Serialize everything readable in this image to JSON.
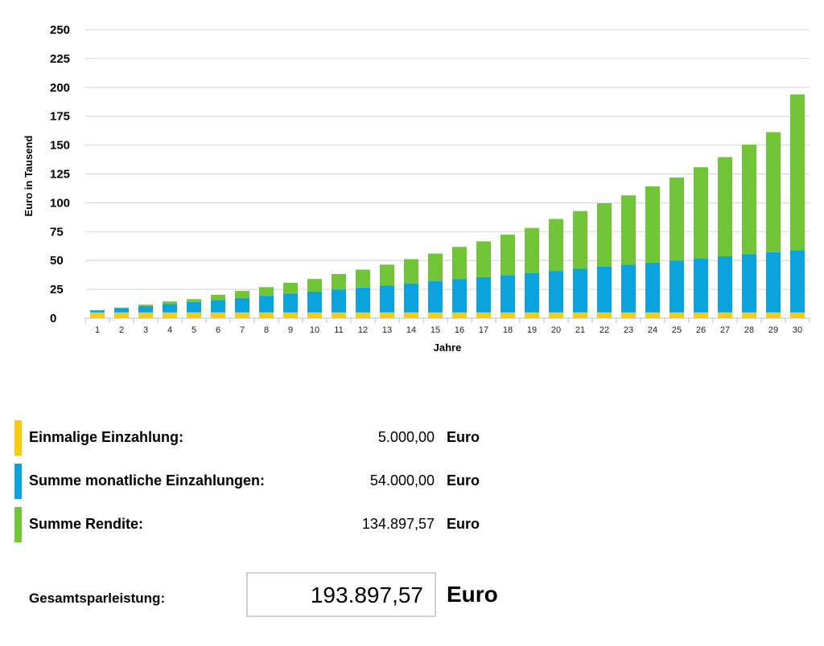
{
  "colors": {
    "einmalig": "#f7cb0f",
    "monatlich": "#0aa3dd",
    "rendite": "#72c537",
    "grid": "#d4d4d4"
  },
  "chart_data": {
    "type": "bar",
    "stacked": true,
    "xlabel": "Jahre",
    "ylabel": "Euro in Tausend",
    "ylim": [
      0,
      250
    ],
    "yticks": [
      0,
      25,
      50,
      75,
      100,
      125,
      150,
      175,
      200,
      225,
      250
    ],
    "categories": [
      "1",
      "2",
      "3",
      "4",
      "5",
      "6",
      "7",
      "8",
      "9",
      "10",
      "11",
      "12",
      "13",
      "14",
      "15",
      "16",
      "17",
      "18",
      "19",
      "20",
      "21",
      "22",
      "23",
      "24",
      "25",
      "26",
      "27",
      "28",
      "29",
      "30"
    ],
    "series": [
      {
        "name": "Einmalige Einzahlung",
        "color": "#f7cb0f",
        "values": [
          5,
          5,
          5,
          5,
          5,
          5,
          5,
          5,
          5,
          5,
          5,
          5,
          5,
          5,
          5,
          5,
          5,
          5,
          5,
          5,
          5,
          5,
          5,
          5,
          5,
          5,
          5,
          5,
          5,
          5
        ]
      },
      {
        "name": "Summe monatliche Einzahlungen",
        "color": "#0aa3dd",
        "values": [
          1.8,
          3.6,
          5.4,
          7.2,
          9,
          10.8,
          12.6,
          14.4,
          16.2,
          18,
          19.8,
          21.6,
          23.4,
          25.2,
          27,
          28.8,
          30.6,
          32.4,
          34.2,
          36,
          37.8,
          39.6,
          41.4,
          43.2,
          45,
          46.8,
          48.6,
          50.4,
          52.2,
          54
        ]
      },
      {
        "name": "Summe Rendite",
        "color": "#72c537",
        "values": [
          0.2,
          0.6,
          1.3,
          2.3,
          2.5,
          4.5,
          6,
          7.5,
          9.5,
          11,
          13.5,
          15.5,
          18,
          21,
          24,
          28,
          31,
          35,
          39,
          45,
          50,
          55,
          60,
          66,
          72,
          79,
          86,
          95,
          104,
          134.9
        ]
      }
    ]
  },
  "legend": [
    {
      "label": "Einmalige Einzahlung:",
      "value": "5.000,00",
      "unit": "Euro"
    },
    {
      "label": "Summe monatliche Einzahlungen:",
      "value": "54.000,00",
      "unit": "Euro"
    },
    {
      "label": "Summe Rendite:",
      "value": "134.897,57",
      "unit": "Euro"
    }
  ],
  "total": {
    "label": "Gesamtsparleistung:",
    "value": "193.897,57",
    "unit": "Euro"
  }
}
